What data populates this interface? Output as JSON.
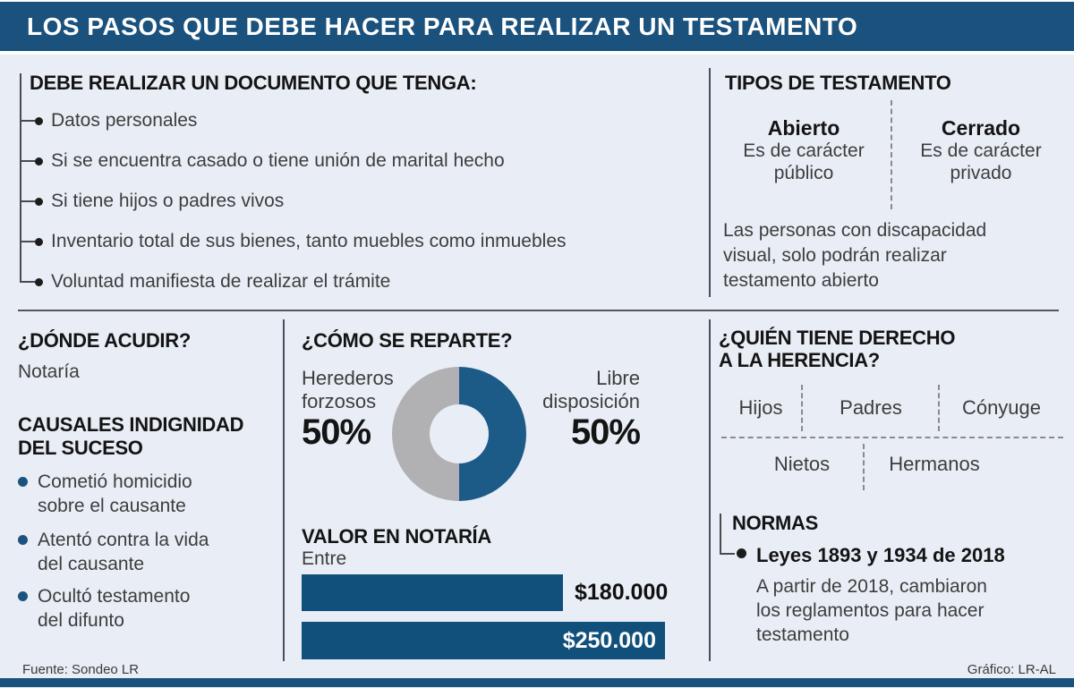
{
  "title_bar": {
    "title": "LOS PASOS QUE DEBE HACER PARA REALIZAR UN TESTAMENTO"
  },
  "document_requirements": {
    "heading": "DEBE REALIZAR UN DOCUMENTO QUE TENGA:",
    "items": [
      "Datos personales",
      "Si se encuentra casado o tiene unión de marital hecho",
      "Si tiene hijos o padres vivos",
      "Inventario total de sus bienes, tanto muebles como inmuebles",
      "Voluntad manifiesta de realizar el trámite"
    ]
  },
  "testament_types": {
    "heading": "TIPOS DE TESTAMENTO",
    "columns": [
      {
        "title": "Abierto",
        "line1": "Es de carácter",
        "line2": "público"
      },
      {
        "title": "Cerrado",
        "line1": "Es de carácter",
        "line2": "privado"
      }
    ],
    "note_lines": [
      "Las personas con discapacidad",
      "visual, solo podrán realizar",
      "testamento abierto"
    ]
  },
  "where_to_go": {
    "heading": "¿DÓNDE ACUDIR?",
    "answer": "Notaría"
  },
  "indignity_causes": {
    "heading_line1": "CAUSALES INDIGNIDAD",
    "heading_line2": "DEL SUCESO",
    "items": [
      {
        "line1": "Cometió homicidio",
        "line2": "sobre el causante"
      },
      {
        "line1": "Atentó contra la vida",
        "line2": "del causante"
      },
      {
        "line1": "Ocultó testamento",
        "line2": "del difunto"
      }
    ]
  },
  "distribution": {
    "heading": "¿CÓMO SE REPARTE?",
    "left": {
      "label_line1": "Herederos",
      "label_line2": "forzosos",
      "value": "50%"
    },
    "right": {
      "label_line1": "Libre",
      "label_line2": "disposición",
      "value": "50%"
    }
  },
  "notary_value": {
    "heading": "VALOR EN NOTARÍA",
    "subheading": "Entre"
  },
  "inheritance_rights": {
    "heading_line1": "¿QUIÉN TIENE DERECHO",
    "heading_line2": "A LA HERENCIA?",
    "row1": [
      "Hijos",
      "Padres",
      "Cónyuge"
    ],
    "row2": [
      "Nietos",
      "Hermanos"
    ]
  },
  "norms": {
    "heading": "NORMAS",
    "law": "Leyes 1893 y 1934 de 2018",
    "description_lines": [
      "A partir de 2018, cambiaron",
      "los reglamentos para hacer",
      "testamento"
    ]
  },
  "footer": {
    "source": "Fuente: Sondeo LR",
    "credit": "Gráfico: LR-AL"
  },
  "colors": {
    "brand_blue": "#1a517d",
    "bar_blue": "#12507c",
    "donut_blue": "#1c5a87",
    "donut_gray": "#b1b1b3",
    "bullet_blue": "#1d527e",
    "background": "#e9eef6"
  },
  "chart_data": [
    {
      "type": "pie",
      "title": "¿CÓMO SE REPARTE?",
      "labels": [
        "Herederos forzosos",
        "Libre disposición"
      ],
      "values": [
        50,
        50
      ],
      "colors": [
        "#b1b1b3",
        "#1c5a87"
      ],
      "donut": true,
      "rotation_deg": 180
    },
    {
      "type": "bar",
      "title": "VALOR EN NOTARÍA",
      "subtitle": "Entre",
      "orientation": "horizontal",
      "values": [
        180000,
        250000
      ],
      "value_labels": [
        "$180.000",
        "$250.000"
      ],
      "xlim": [
        0,
        250000
      ],
      "bar_color": "#12507c"
    }
  ]
}
